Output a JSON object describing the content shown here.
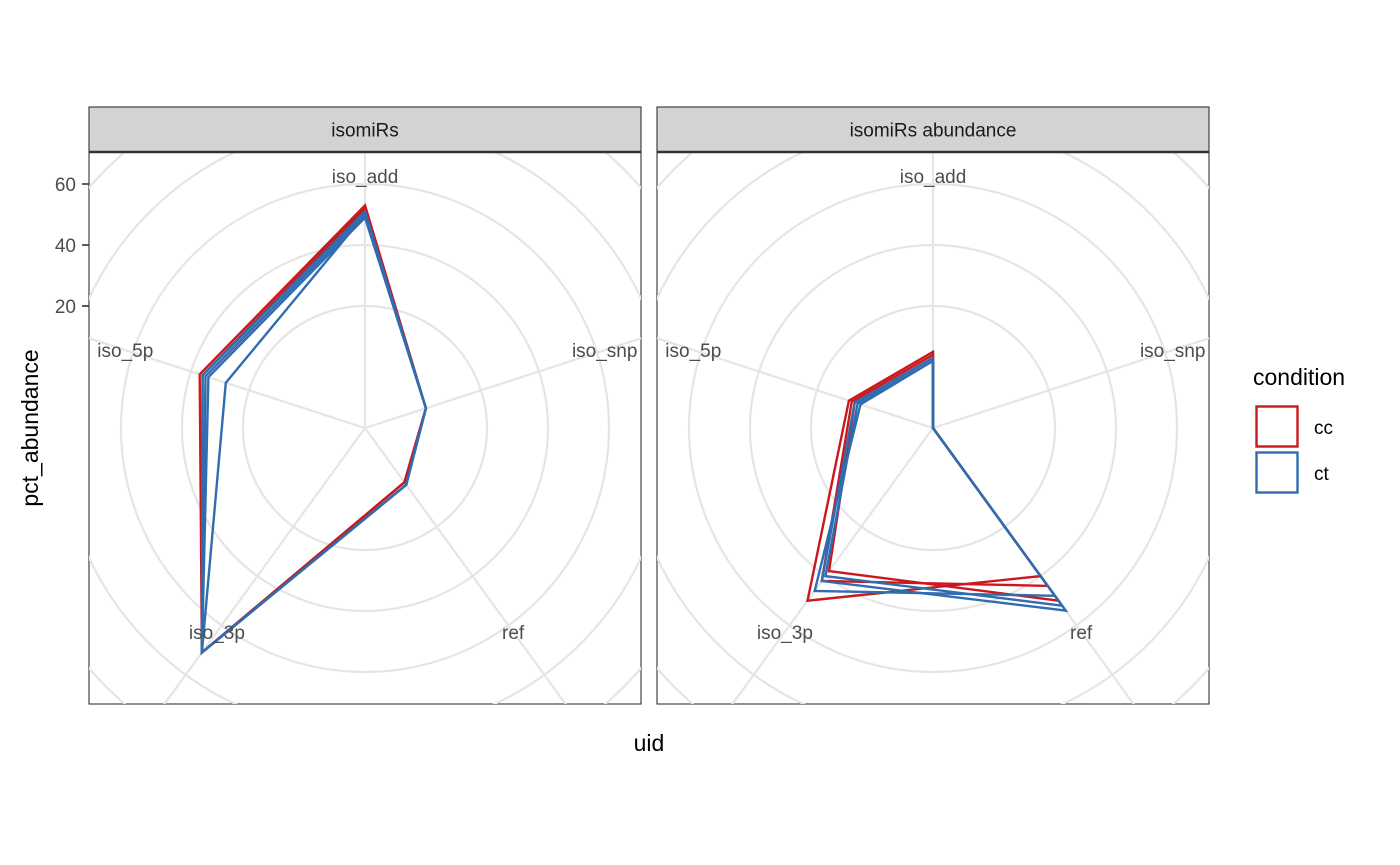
{
  "chart_data": {
    "type": "radar",
    "xlabel": "uid",
    "ylabel": "pct_abundance",
    "y_ticks": [
      20,
      40,
      60
    ],
    "grid_circles": [
      20,
      40,
      60,
      80,
      100
    ],
    "rlim": [
      -20,
      80
    ],
    "axes": [
      "iso_add",
      "iso_snp",
      "ref",
      "iso_3p",
      "iso_5p"
    ],
    "legend": {
      "title": "condition",
      "placement": "right",
      "entries": [
        {
          "name": "cc",
          "color": "#CB181D"
        },
        {
          "name": "ct",
          "color": "#2F6CB0"
        }
      ]
    },
    "grid": true,
    "colors": {
      "cc": "#CB181D",
      "ct": "#2F6CB0",
      "grid": "#e5e5e5",
      "strip_bg": "#d3d3d3"
    },
    "panels": [
      {
        "strip": "isomiRs",
        "series": [
          {
            "condition": "cc",
            "values": [
              53,
              1,
              2,
              71,
              37
            ]
          },
          {
            "condition": "cc",
            "values": [
              52,
              1,
              2,
              71,
              36
            ]
          },
          {
            "condition": "ct",
            "values": [
              51,
              1,
              3,
              71,
              36
            ]
          },
          {
            "condition": "ct",
            "values": [
              50,
              1,
              3,
              71,
              35
            ]
          },
          {
            "condition": "ct",
            "values": [
              49,
              1,
              3,
              71,
              34
            ]
          },
          {
            "condition": "ct",
            "values": [
              50,
              1,
              3,
              71,
              28
            ]
          }
        ]
      },
      {
        "strip": "isomiRs abundance",
        "series": [
          {
            "condition": "cc",
            "values": [
              5,
              -20,
              40,
              50,
              9
            ]
          },
          {
            "condition": "cc",
            "values": [
              4,
              -20,
              44,
              42,
              8
            ]
          },
          {
            "condition": "cc",
            "values": [
              3,
              -20,
              50,
              38,
              7
            ]
          },
          {
            "condition": "ct",
            "values": [
              3,
              -20,
              54,
              42,
              7
            ]
          },
          {
            "condition": "ct",
            "values": [
              2,
              -20,
              52,
              40,
              6
            ]
          },
          {
            "condition": "ct",
            "values": [
              2,
              -20,
              48,
              46,
              5
            ]
          }
        ]
      }
    ]
  }
}
